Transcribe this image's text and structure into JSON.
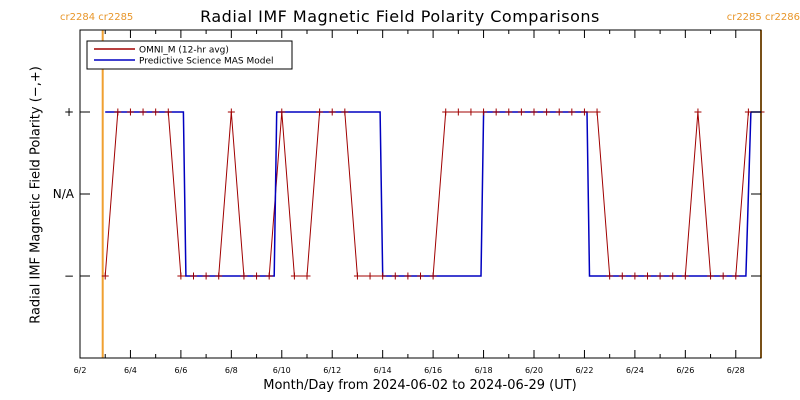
{
  "title": "Radial IMF Magnetic Field Polarity Comparisons",
  "cr_left": "cr2284 cr2285",
  "cr_right": "cr2285 cr2286",
  "colors": {
    "omni": "#a00000",
    "model": "#0000c0",
    "cr_line": "#f0a030",
    "axis": "#000000"
  },
  "chart_data": {
    "type": "line",
    "title": "Radial IMF Magnetic Field Polarity Comparisons",
    "xlabel": "Month/Day from 2024-06-02 to 2024-06-29 (UT)",
    "ylabel": "Radial IMF Magnetic Field Polarity (−,+)",
    "x_unit": "days since 2024-06-02 00:00 UT",
    "xlim": [
      0,
      27
    ],
    "ylim": [
      -2,
      2
    ],
    "x_ticks": [
      {
        "value": 0,
        "label": "6/2"
      },
      {
        "value": 2,
        "label": "6/4"
      },
      {
        "value": 4,
        "label": "6/6"
      },
      {
        "value": 6,
        "label": "6/8"
      },
      {
        "value": 8,
        "label": "6/10"
      },
      {
        "value": 10,
        "label": "6/12"
      },
      {
        "value": 12,
        "label": "6/14"
      },
      {
        "value": 14,
        "label": "6/16"
      },
      {
        "value": 16,
        "label": "6/18"
      },
      {
        "value": 18,
        "label": "6/20"
      },
      {
        "value": 20,
        "label": "6/22"
      },
      {
        "value": 22,
        "label": "6/24"
      },
      {
        "value": 24,
        "label": "6/26"
      },
      {
        "value": 26,
        "label": "6/28"
      }
    ],
    "y_ticks": [
      {
        "value": 1,
        "label": "+"
      },
      {
        "value": 0,
        "label": "N/A"
      },
      {
        "value": -1,
        "label": "−"
      }
    ],
    "cr_boundaries": [
      0.9,
      27.0
    ],
    "legend": {
      "position": "top-left"
    },
    "series": [
      {
        "name": "OMNI_M (12-hr avg)",
        "marker": "+",
        "x": [
          1.0,
          1.5,
          2.0,
          2.5,
          3.0,
          3.5,
          4.0,
          4.5,
          5.0,
          5.5,
          6.0,
          6.5,
          7.0,
          7.5,
          8.0,
          8.5,
          9.0,
          9.5,
          10.0,
          10.5,
          11.0,
          11.5,
          12.0,
          12.5,
          13.0,
          13.5,
          14.0,
          14.5,
          15.0,
          15.5,
          16.0,
          16.5,
          17.0,
          17.5,
          18.0,
          18.5,
          19.0,
          19.5,
          20.0,
          20.5,
          21.0,
          21.5,
          22.0,
          22.5,
          23.0,
          23.5,
          24.0,
          24.5,
          25.0,
          25.5,
          26.0,
          26.5,
          27.0
        ],
        "y": [
          -1,
          1,
          1,
          1,
          1,
          1,
          -1,
          -1,
          -1,
          -1,
          1,
          -1,
          -1,
          -1,
          1,
          -1,
          -1,
          1,
          1,
          1,
          -1,
          -1,
          -1,
          -1,
          -1,
          -1,
          -1,
          1,
          1,
          1,
          1,
          1,
          1,
          1,
          1,
          1,
          1,
          1,
          1,
          1,
          -1,
          -1,
          -1,
          -1,
          -1,
          -1,
          -1,
          1,
          -1,
          -1,
          -1,
          1,
          1
        ]
      },
      {
        "name": "Predictive Science MAS Model",
        "x": [
          1.0,
          4.1,
          4.2,
          7.7,
          7.8,
          11.9,
          12.0,
          15.9,
          16.0,
          20.1,
          20.2,
          26.4,
          26.6,
          27.0
        ],
        "y": [
          1,
          1,
          -1,
          -1,
          1,
          1,
          -1,
          -1,
          1,
          1,
          -1,
          -1,
          1,
          1
        ]
      }
    ]
  }
}
